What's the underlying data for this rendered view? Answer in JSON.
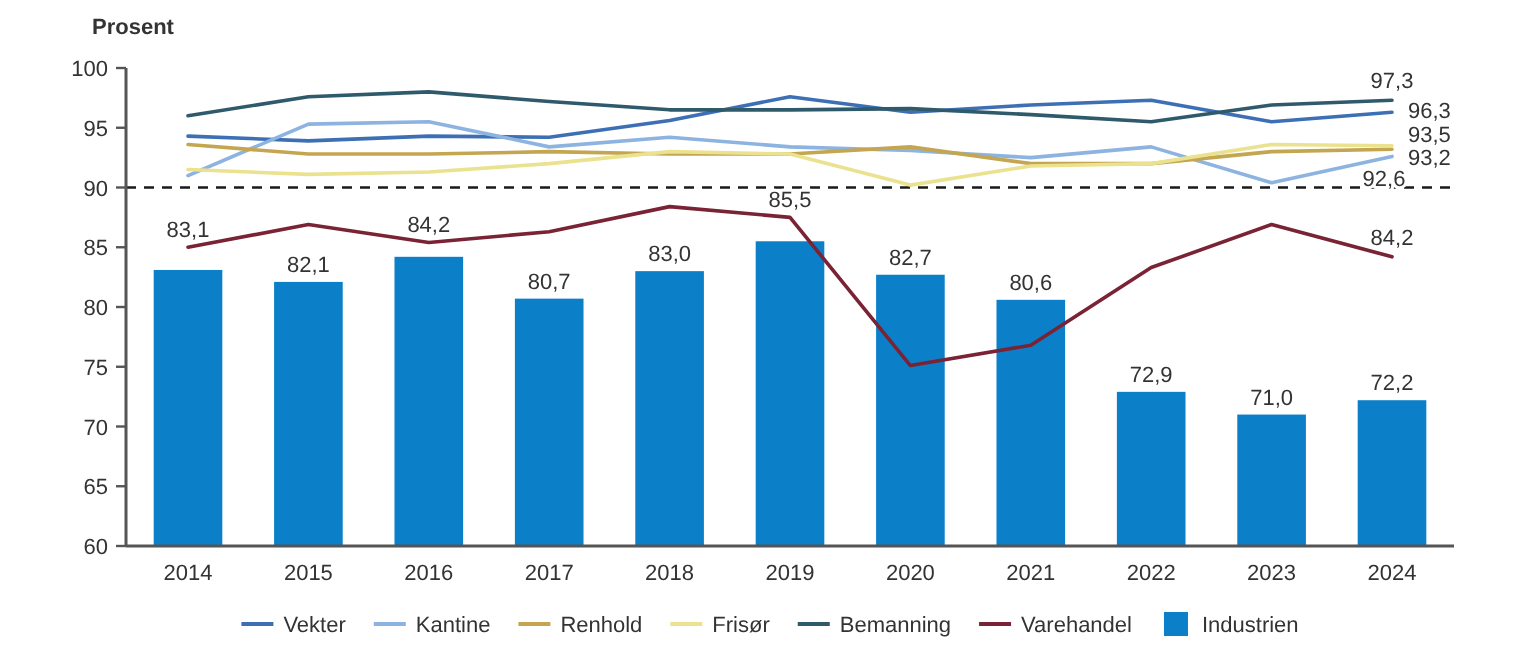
{
  "chart_data": {
    "type": "bar",
    "ylabel": "Prosent",
    "categories": [
      "2014",
      "2015",
      "2016",
      "2017",
      "2018",
      "2019",
      "2020",
      "2021",
      "2022",
      "2023",
      "2024"
    ],
    "ylim": [
      60,
      100
    ],
    "yticks": [
      60,
      65,
      70,
      75,
      80,
      85,
      90,
      95,
      100
    ],
    "legend": "bottom",
    "series": [
      {
        "name": "Vekter",
        "type": "line",
        "color": "#3d6fb5",
        "values": [
          94.3,
          93.9,
          94.3,
          94.2,
          95.6,
          97.6,
          96.3,
          96.9,
          97.3,
          95.5,
          96.3
        ],
        "value_labels": [
          null,
          null,
          null,
          null,
          null,
          null,
          null,
          null,
          null,
          null,
          "96,3"
        ]
      },
      {
        "name": "Kantine",
        "type": "line",
        "color": "#8db3e0",
        "values": [
          91.0,
          95.3,
          95.5,
          93.4,
          94.2,
          93.4,
          93.1,
          92.5,
          93.4,
          90.4,
          92.6
        ],
        "value_labels": [
          null,
          null,
          null,
          null,
          null,
          null,
          null,
          null,
          null,
          null,
          "92,6"
        ]
      },
      {
        "name": "Renhold",
        "type": "line",
        "color": "#c4a550",
        "values": [
          93.6,
          92.8,
          92.8,
          93.0,
          92.8,
          92.8,
          93.4,
          92.0,
          92.0,
          93.0,
          93.2
        ],
        "value_labels": [
          null,
          null,
          null,
          null,
          null,
          null,
          null,
          null,
          null,
          null,
          "93,2"
        ]
      },
      {
        "name": "Frisør",
        "type": "line",
        "color": "#ebe290",
        "values": [
          91.5,
          91.1,
          91.3,
          92.0,
          93.0,
          92.8,
          90.2,
          91.8,
          92.0,
          93.6,
          93.5
        ],
        "value_labels": [
          null,
          null,
          null,
          null,
          null,
          null,
          null,
          null,
          null,
          null,
          "93,5"
        ]
      },
      {
        "name": "Bemanning",
        "type": "line",
        "color": "#2f5a6b",
        "values": [
          96.0,
          97.6,
          98.0,
          97.2,
          96.5,
          96.5,
          96.6,
          96.1,
          95.5,
          96.9,
          97.3
        ],
        "value_labels": [
          null,
          null,
          null,
          null,
          null,
          null,
          null,
          null,
          null,
          null,
          "97,3"
        ]
      },
      {
        "name": "Varehandel",
        "type": "line",
        "color": "#7a2335",
        "values": [
          85.0,
          86.9,
          85.4,
          86.3,
          88.4,
          87.5,
          75.1,
          76.8,
          83.3,
          86.9,
          84.2
        ],
        "value_labels": [
          null,
          null,
          null,
          null,
          null,
          null,
          null,
          null,
          null,
          null,
          "84,2"
        ]
      },
      {
        "name": "Industrien",
        "type": "bar",
        "color": "#0b80c8",
        "values": [
          83.1,
          82.1,
          84.2,
          80.7,
          83.0,
          85.5,
          82.7,
          80.6,
          72.9,
          71.0,
          72.2
        ],
        "value_labels": [
          "83,1",
          "82,1",
          "84,2",
          "80,7",
          "83,0",
          "85,5",
          "82,7",
          "80,6",
          "72,9",
          "71,0",
          "72,2"
        ]
      }
    ],
    "ref_lines": [
      {
        "axis": "y",
        "value": 90,
        "line_style": "dashed",
        "color": "#1a1a1a"
      }
    ]
  }
}
